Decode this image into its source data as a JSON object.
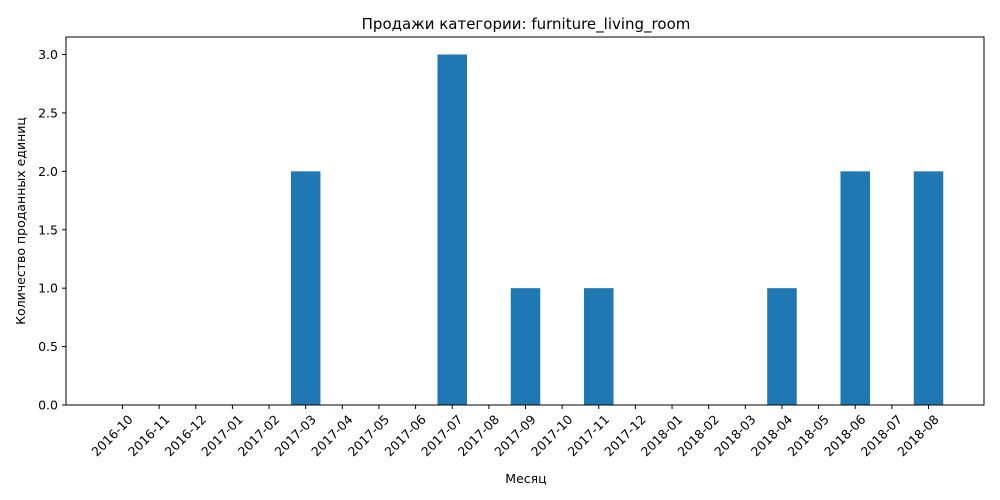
{
  "chart_data": {
    "type": "bar",
    "title": "Продажи категории: furniture_living_room",
    "xlabel": "Месяц",
    "ylabel": "Количество проданных единиц",
    "categories": [
      "2016-10",
      "2016-11",
      "2016-12",
      "2017-01",
      "2017-02",
      "2017-03",
      "2017-04",
      "2017-05",
      "2017-06",
      "2017-07",
      "2017-08",
      "2017-09",
      "2017-10",
      "2017-11",
      "2017-12",
      "2018-01",
      "2018-02",
      "2018-03",
      "2018-04",
      "2018-05",
      "2018-06",
      "2018-07",
      "2018-08"
    ],
    "values": [
      0,
      0,
      0,
      0,
      0,
      2,
      0,
      0,
      0,
      3,
      0,
      1,
      0,
      1,
      0,
      0,
      0,
      0,
      1,
      0,
      2,
      0,
      2
    ],
    "ylim": [
      0,
      3.15
    ],
    "yticks": [
      "0.0",
      "0.5",
      "1.0",
      "1.5",
      "2.0",
      "2.5",
      "3.0"
    ],
    "grid": false,
    "bar_color": "#1f77b4"
  }
}
